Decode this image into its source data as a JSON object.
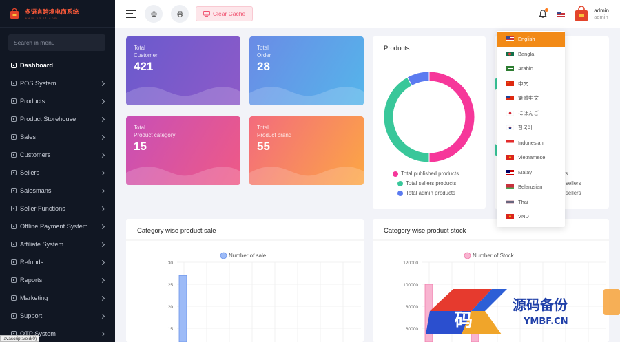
{
  "brand": {
    "name": "多语言跨境电商系统",
    "sub": "www.ymbf.com"
  },
  "sidebar": {
    "search_placeholder": "Search in menu",
    "items": [
      {
        "label": "Dashboard",
        "icon": "dashboard-icon",
        "chevron": false,
        "active": true
      },
      {
        "label": "POS System",
        "icon": "pos-icon",
        "chevron": true
      },
      {
        "label": "Products",
        "icon": "box-icon",
        "chevron": true
      },
      {
        "label": "Product Storehouse",
        "icon": "storehouse-icon",
        "chevron": true
      },
      {
        "label": "Sales",
        "icon": "sales-icon",
        "chevron": true
      },
      {
        "label": "Customers",
        "icon": "customers-icon",
        "chevron": true
      },
      {
        "label": "Sellers",
        "icon": "sellers-icon",
        "chevron": true
      },
      {
        "label": "Salesmans",
        "icon": "salesman-icon",
        "chevron": true
      },
      {
        "label": "Seller Functions",
        "icon": "functions-icon",
        "chevron": true
      },
      {
        "label": "Offline Payment System",
        "icon": "payment-icon",
        "chevron": true
      },
      {
        "label": "Affiliate System",
        "icon": "affiliate-icon",
        "chevron": true
      },
      {
        "label": "Refunds",
        "icon": "refund-icon",
        "chevron": true
      },
      {
        "label": "Reports",
        "icon": "reports-icon",
        "chevron": true
      },
      {
        "label": "Marketing",
        "icon": "marketing-icon",
        "chevron": true
      },
      {
        "label": "Support",
        "icon": "support-icon",
        "chevron": true
      },
      {
        "label": "OTP System",
        "icon": "otp-icon",
        "chevron": true
      }
    ]
  },
  "header": {
    "clear_cache_label": "Clear Cache",
    "user_name": "admin",
    "user_role": "admin"
  },
  "status_bar": "javascript:void(0)",
  "stats": [
    {
      "label1": "Total",
      "label2": "Customer",
      "value": "421",
      "colors": [
        "#6a5acd",
        "#8d5ac8"
      ]
    },
    {
      "label1": "Total",
      "label2": "Order",
      "value": "28",
      "colors": [
        "#6a8be6",
        "#55b5ea"
      ]
    },
    {
      "label1": "Total",
      "label2": "Product category",
      "value": "15",
      "colors": [
        "#c84fb6",
        "#ef5a86"
      ]
    },
    {
      "label1": "Total",
      "label2": "Product brand",
      "value": "55",
      "colors": [
        "#f36b7d",
        "#fca744"
      ]
    }
  ],
  "products_panel": {
    "title": "Products",
    "legend": [
      "Total published products",
      "Total sellers products",
      "Total admin products"
    ]
  },
  "right_panel": {
    "legend_partial": [
      "rs",
      "sellers",
      "sellers"
    ]
  },
  "languages": {
    "selected": "English",
    "items": [
      "English",
      "Bangla",
      "Arabic",
      "中文",
      "繁體中文",
      "にほんご",
      "한국어",
      "Indonesian",
      "Vietnamese",
      "Malay",
      "Belarusian",
      "Thai",
      "VND"
    ]
  },
  "chart_data": [
    {
      "type": "pie",
      "categories": [
        "Total published products",
        "Total sellers products",
        "Total admin products"
      ],
      "values": [
        50,
        42,
        8
      ],
      "colors": [
        "#f6379a",
        "#39c79a",
        "#5b7bf0"
      ]
    },
    {
      "type": "bar",
      "title": "Category wise product sale",
      "series": [
        {
          "name": "Number of sale",
          "values": [
            27
          ]
        }
      ],
      "yticks": [
        30,
        25,
        20,
        15
      ],
      "ylim": [
        0,
        30
      ],
      "color": "#9dbbf7"
    },
    {
      "type": "bar",
      "title": "Category wise product stock",
      "series": [
        {
          "name": "Number of Stock",
          "values": [
            100000,
            60000
          ]
        }
      ],
      "yticks": [
        "120000",
        "100000",
        "80000",
        "60000"
      ],
      "ylim": [
        0,
        120000
      ],
      "color": "#f8b4d0"
    }
  ],
  "watermark": {
    "glyph": "码",
    "title": "源码备份",
    "domain": "YMBF.CN"
  }
}
